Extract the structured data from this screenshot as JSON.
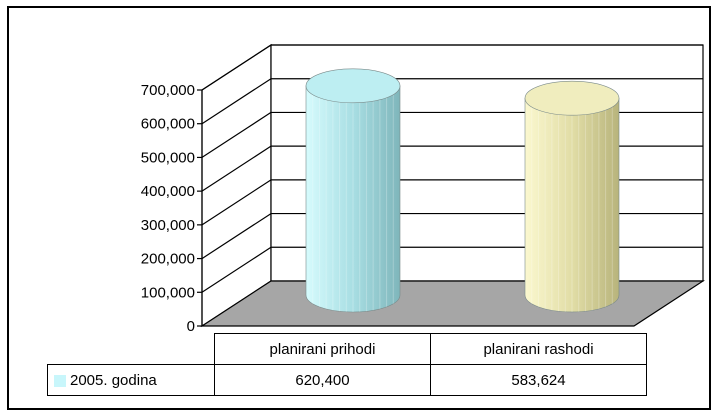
{
  "chart_data": {
    "type": "bar",
    "subtype": "3d-cylinder",
    "title": "",
    "xlabel": "",
    "ylabel": "",
    "categories": [
      "planirani  prihodi",
      "planirani rashodi"
    ],
    "series": [
      {
        "name": "2005. godina",
        "values": [
          620400,
          583624
        ]
      }
    ],
    "value_labels": [
      "620,400",
      "583,624"
    ],
    "ylim": [
      0,
      700000
    ],
    "yticks": [
      "0",
      "100,000",
      "200,000",
      "300,000",
      "400,000",
      "500,000",
      "600,000",
      "700,000"
    ],
    "grid": true,
    "legend": "data-table",
    "colors": {
      "series_swatch": "#c8f6fb",
      "cylinder_1": "#bdeef2",
      "cylinder_2": "#f0edbe",
      "floor": "#a6a6a6"
    }
  }
}
